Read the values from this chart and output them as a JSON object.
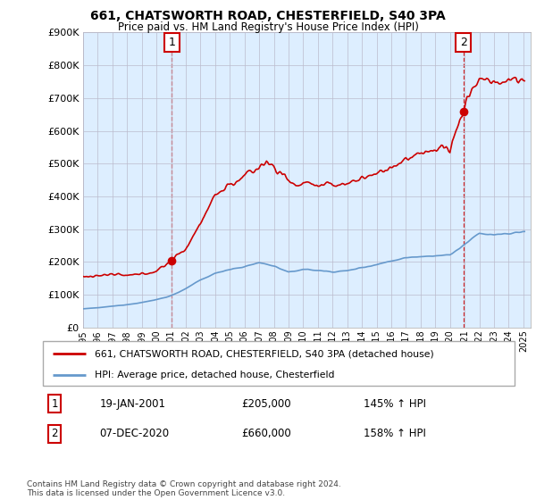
{
  "title": "661, CHATSWORTH ROAD, CHESTERFIELD, S40 3PA",
  "subtitle": "Price paid vs. HM Land Registry's House Price Index (HPI)",
  "red_label": "661, CHATSWORTH ROAD, CHESTERFIELD, S40 3PA (detached house)",
  "blue_label": "HPI: Average price, detached house, Chesterfield",
  "annotation1": {
    "num": "1",
    "date": "19-JAN-2001",
    "price": "£205,000",
    "pct": "145% ↑ HPI"
  },
  "annotation2": {
    "num": "2",
    "date": "07-DEC-2020",
    "price": "£660,000",
    "pct": "158% ↑ HPI"
  },
  "footer": "Contains HM Land Registry data © Crown copyright and database right 2024.\nThis data is licensed under the Open Government Licence v3.0.",
  "ylim": [
    0,
    900000
  ],
  "yticks": [
    0,
    100000,
    200000,
    300000,
    400000,
    500000,
    600000,
    700000,
    800000,
    900000
  ],
  "red_color": "#cc0000",
  "blue_color": "#6699cc",
  "plot_bg_color": "#ddeeff",
  "background_color": "#ffffff",
  "grid_color": "#bbbbcc",
  "sale1_year": 2001.05,
  "sale1_price": 205000,
  "sale2_year": 2020.92,
  "sale2_price": 660000
}
